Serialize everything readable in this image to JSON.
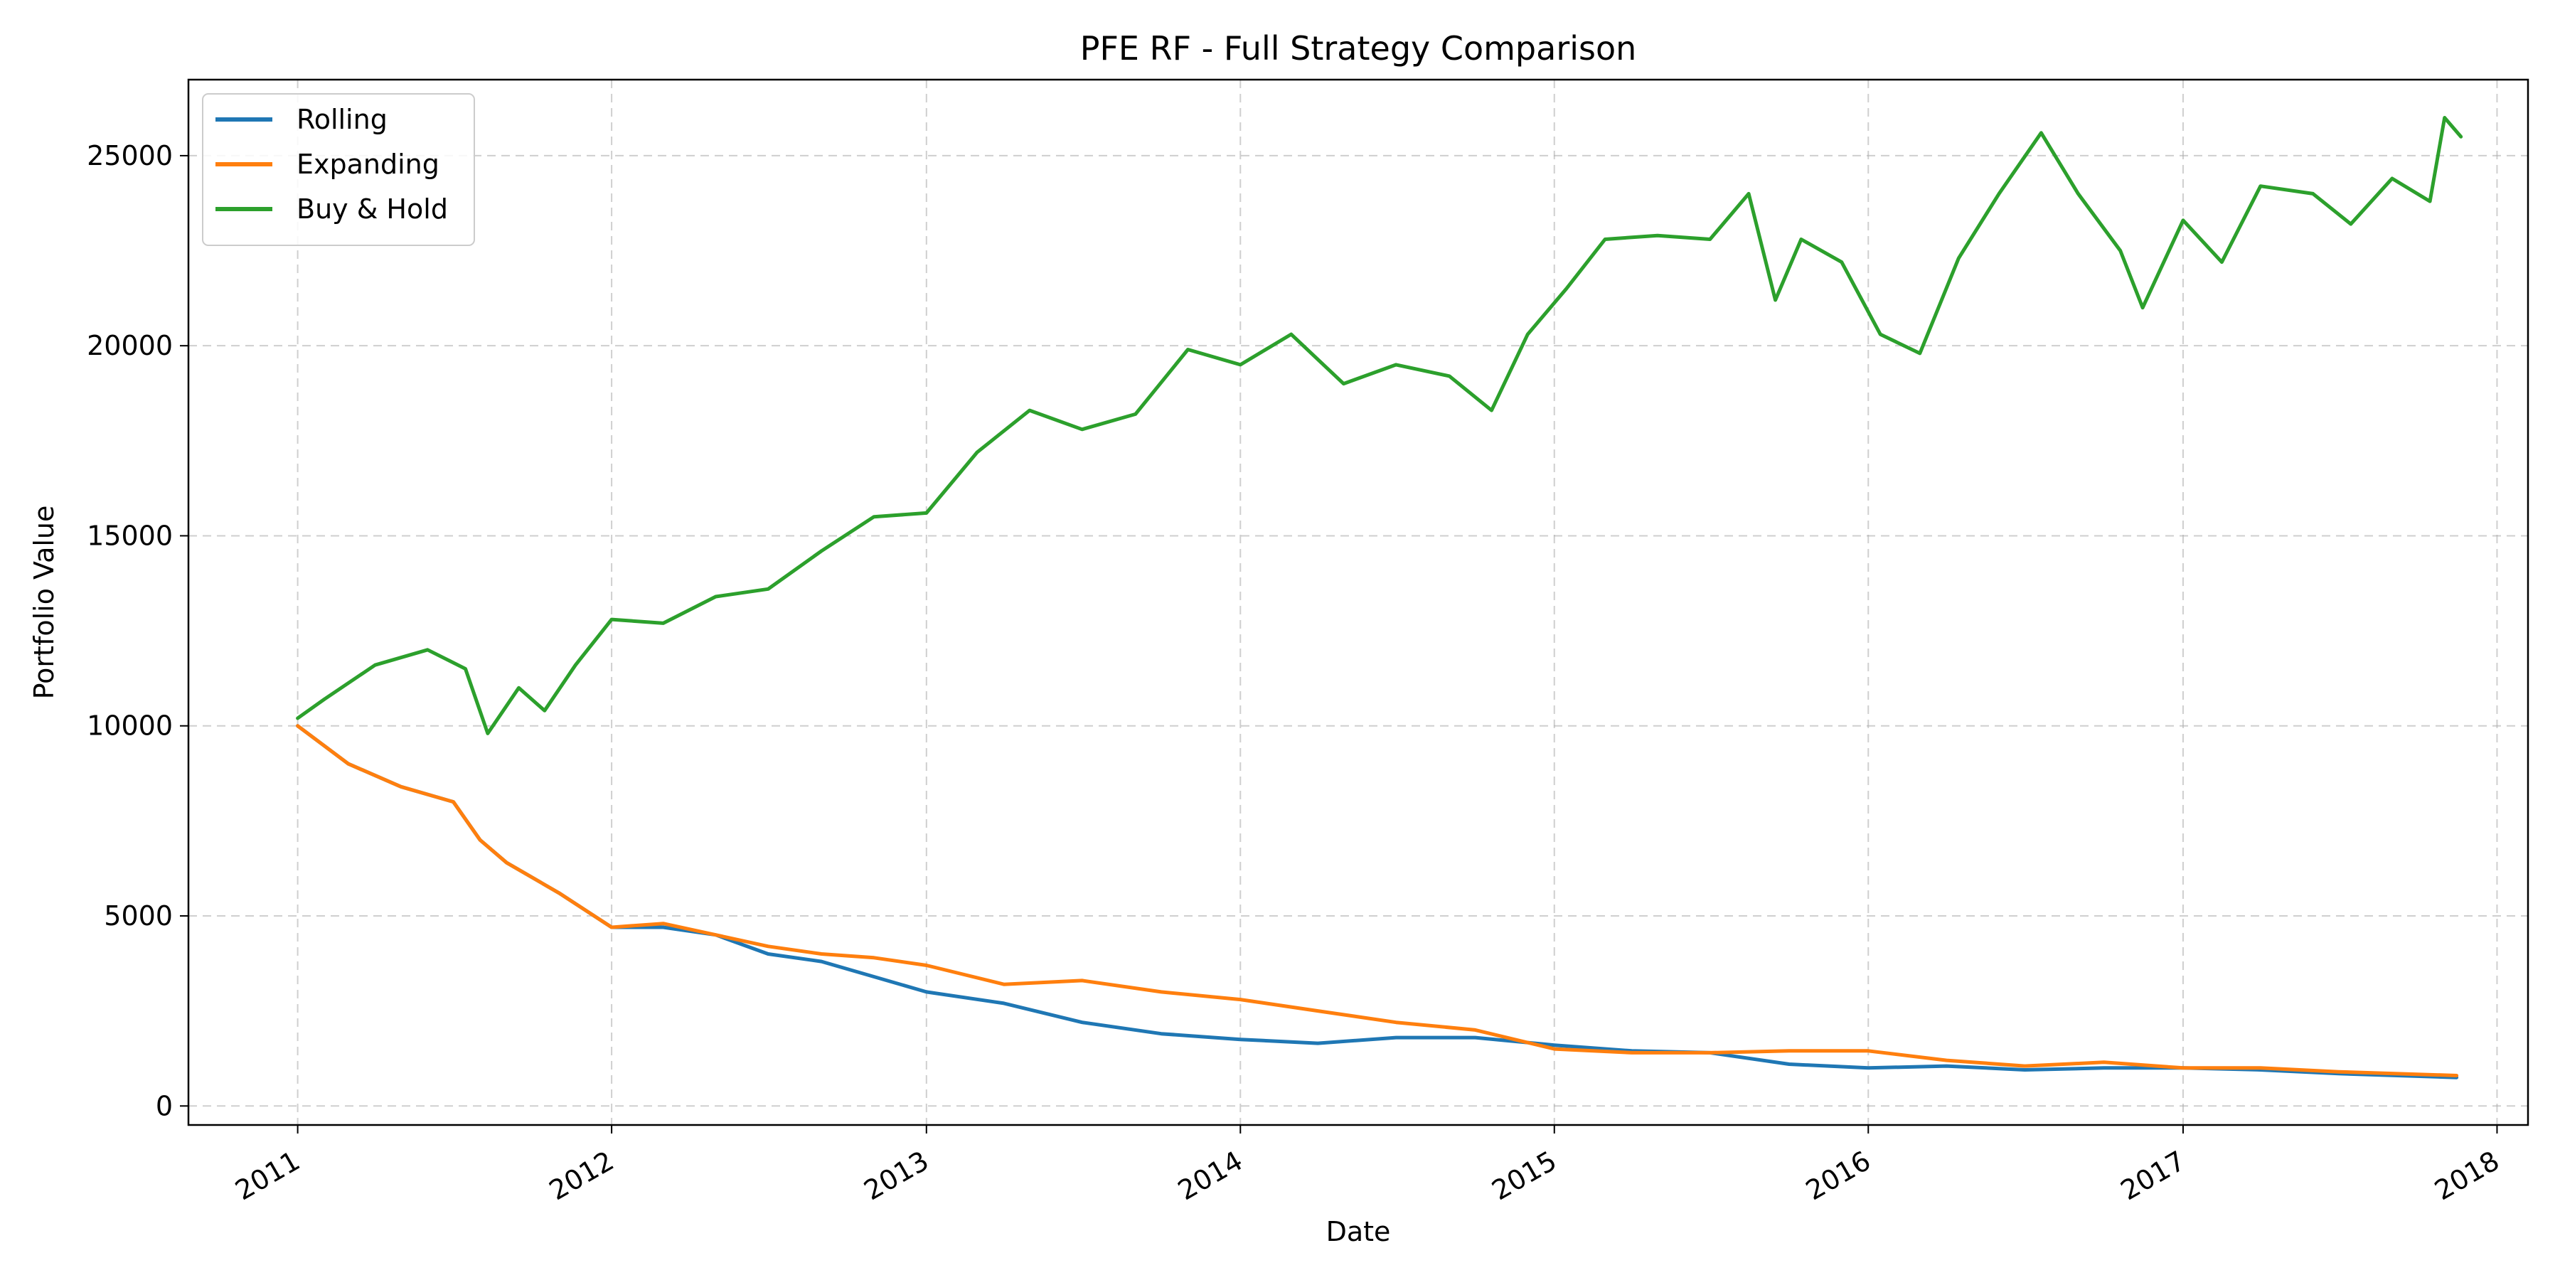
{
  "chart_data": {
    "type": "line",
    "title": "PFE RF - Full Strategy Comparison",
    "xlabel": "Date",
    "ylabel": "Portfolio Value",
    "xlim": [
      "2010-08-27",
      "2018-02-06"
    ],
    "ylim": [
      -500,
      27000
    ],
    "x_ticks": [
      "2011",
      "2012",
      "2013",
      "2014",
      "2015",
      "2016",
      "2017",
      "2018"
    ],
    "y_ticks": [
      0,
      5000,
      10000,
      15000,
      20000,
      25000
    ],
    "grid": true,
    "legend_position": "top-left",
    "series": [
      {
        "name": "Rolling",
        "color": "#1f77b4",
        "x": [
          "2011-01-01",
          "2011-03-01",
          "2011-05-01",
          "2011-07-01",
          "2011-08-01",
          "2011-09-01",
          "2011-11-01",
          "2012-01-01",
          "2012-03-01",
          "2012-05-01",
          "2012-07-01",
          "2012-09-01",
          "2012-11-01",
          "2013-01-01",
          "2013-04-01",
          "2013-07-01",
          "2013-10-01",
          "2014-01-01",
          "2014-04-01",
          "2014-07-01",
          "2014-10-01",
          "2015-01-01",
          "2015-04-01",
          "2015-07-01",
          "2015-10-01",
          "2016-01-01",
          "2016-04-01",
          "2016-07-01",
          "2016-10-01",
          "2017-01-01",
          "2017-04-01",
          "2017-07-01",
          "2017-11-15"
        ],
        "y": [
          10000,
          9000,
          8400,
          8000,
          7000,
          6400,
          5600,
          4700,
          4700,
          4500,
          4000,
          3800,
          3400,
          3000,
          2700,
          2200,
          1900,
          1750,
          1650,
          1800,
          1800,
          1600,
          1450,
          1400,
          1100,
          1000,
          1050,
          950,
          1000,
          1000,
          950,
          850,
          750
        ]
      },
      {
        "name": "Expanding",
        "color": "#ff7f0e",
        "x": [
          "2011-01-01",
          "2011-03-01",
          "2011-05-01",
          "2011-07-01",
          "2011-08-01",
          "2011-09-01",
          "2011-11-01",
          "2012-01-01",
          "2012-03-01",
          "2012-05-01",
          "2012-07-01",
          "2012-09-01",
          "2012-11-01",
          "2013-01-01",
          "2013-04-01",
          "2013-07-01",
          "2013-10-01",
          "2014-01-01",
          "2014-04-01",
          "2014-07-01",
          "2014-10-01",
          "2015-01-01",
          "2015-04-01",
          "2015-07-01",
          "2015-10-01",
          "2016-01-01",
          "2016-04-01",
          "2016-07-01",
          "2016-10-01",
          "2017-01-01",
          "2017-04-01",
          "2017-07-01",
          "2017-11-15"
        ],
        "y": [
          10000,
          9000,
          8400,
          8000,
          7000,
          6400,
          5600,
          4700,
          4800,
          4500,
          4200,
          4000,
          3900,
          3700,
          3200,
          3300,
          3000,
          2800,
          2500,
          2200,
          2000,
          1500,
          1400,
          1400,
          1450,
          1450,
          1200,
          1050,
          1150,
          1000,
          1000,
          900,
          800
        ]
      },
      {
        "name": "Buy & Hold",
        "color": "#2ca02c",
        "x": [
          "2011-01-01",
          "2011-02-01",
          "2011-04-01",
          "2011-06-01",
          "2011-07-15",
          "2011-08-10",
          "2011-09-15",
          "2011-10-15",
          "2011-11-20",
          "2012-01-01",
          "2012-03-01",
          "2012-05-01",
          "2012-07-01",
          "2012-09-01",
          "2012-11-01",
          "2013-01-01",
          "2013-03-01",
          "2013-05-01",
          "2013-07-01",
          "2013-09-01",
          "2013-11-01",
          "2014-01-01",
          "2014-03-01",
          "2014-05-01",
          "2014-07-01",
          "2014-09-01",
          "2014-10-20",
          "2014-12-01",
          "2015-01-15",
          "2015-03-01",
          "2015-05-01",
          "2015-07-01",
          "2015-08-15",
          "2015-09-15",
          "2015-10-15",
          "2015-12-01",
          "2016-01-15",
          "2016-03-01",
          "2016-04-15",
          "2016-06-01",
          "2016-07-20",
          "2016-09-01",
          "2016-10-20",
          "2016-11-15",
          "2017-01-01",
          "2017-02-15",
          "2017-04-01",
          "2017-06-01",
          "2017-07-15",
          "2017-09-01",
          "2017-10-15",
          "2017-11-01",
          "2017-11-20"
        ],
        "y": [
          10200,
          10700,
          11600,
          12000,
          11500,
          9800,
          11000,
          10400,
          11600,
          12800,
          12700,
          13400,
          13600,
          14600,
          15500,
          15600,
          17200,
          18300,
          17800,
          18200,
          19900,
          19500,
          20300,
          19000,
          19500,
          19200,
          18300,
          20300,
          21500,
          22800,
          22900,
          22800,
          24000,
          21200,
          22800,
          22200,
          20300,
          19800,
          22300,
          24000,
          25600,
          24000,
          22500,
          21000,
          23300,
          22200,
          24200,
          24000,
          23200,
          24400,
          23800,
          26000,
          25500
        ]
      }
    ]
  }
}
